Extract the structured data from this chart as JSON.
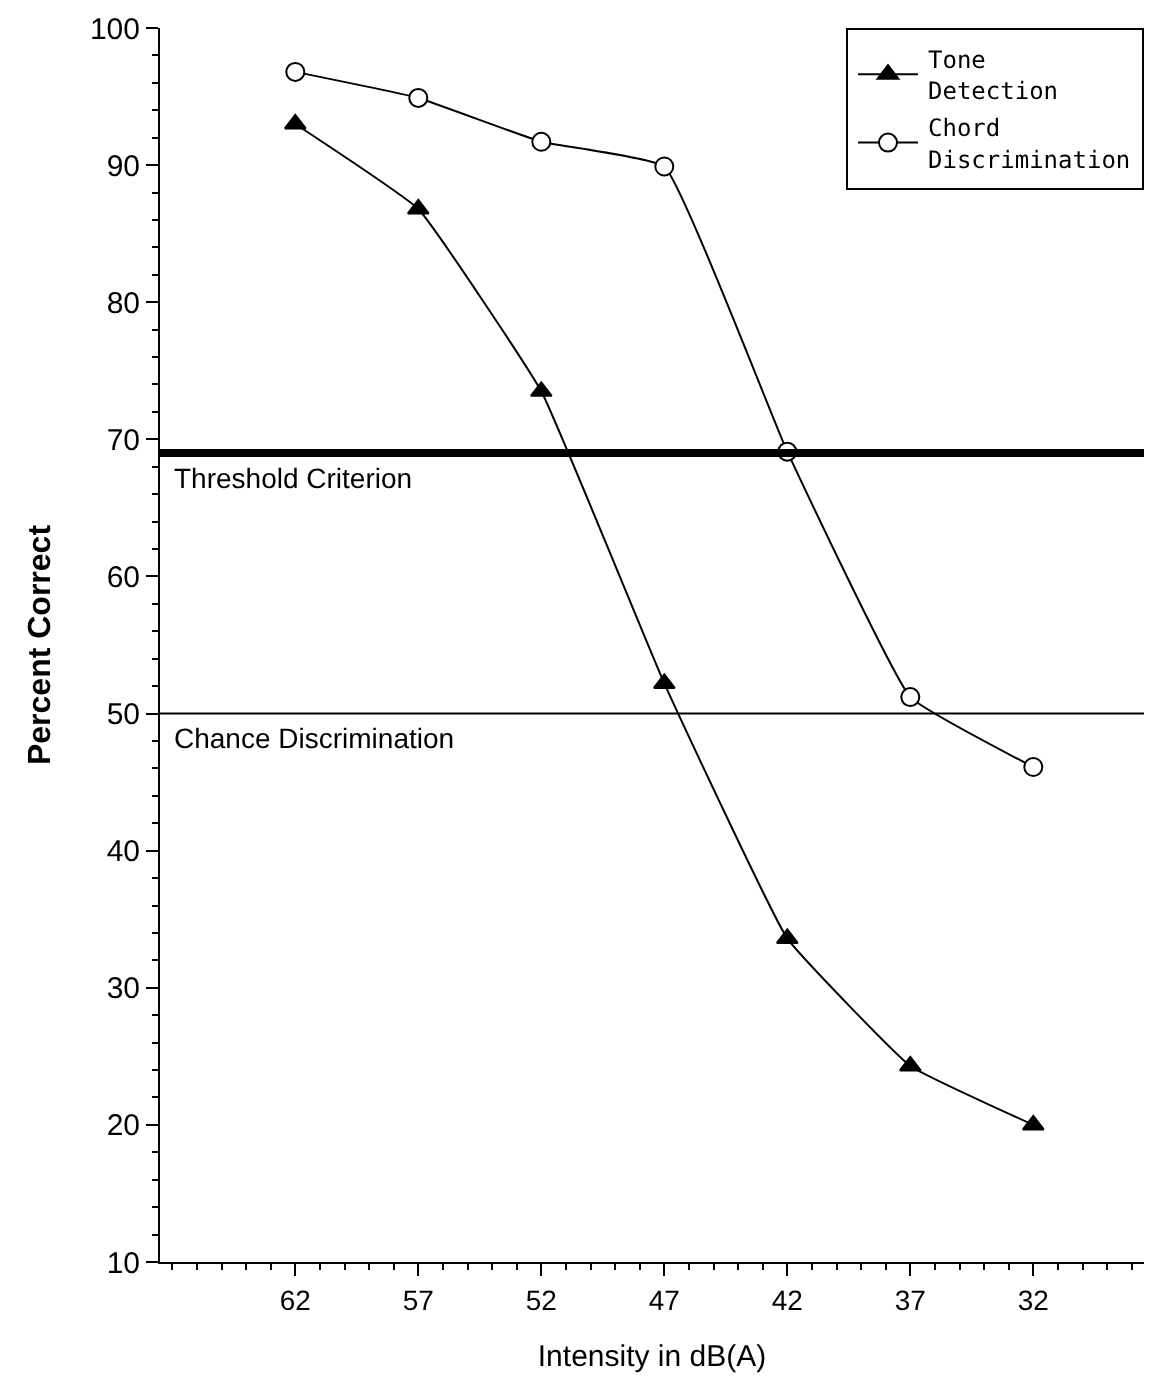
{
  "chart_data": {
    "type": "line",
    "xlabel": "Intensity in dB(A)",
    "ylabel": "Percent Correct",
    "x": [
      62,
      57,
      52,
      47,
      42,
      37,
      32
    ],
    "series": [
      {
        "name": "Tone\nDetection",
        "color": "#000000",
        "marker": "triangle",
        "values": [
          93.0,
          86.8,
          73.5,
          52.2,
          33.6,
          24.3,
          20.0
        ]
      },
      {
        "name": "Chord\nDiscrimination",
        "color": "#000000",
        "marker": "circle",
        "values": [
          96.8,
          94.9,
          91.7,
          89.9,
          69.1,
          51.2,
          46.1
        ]
      }
    ],
    "xlim": [
      67.5,
      27.5
    ],
    "xticks": [
      62,
      57,
      52,
      47,
      42,
      37,
      32
    ],
    "ylim": [
      10,
      100
    ],
    "yticks": [
      10,
      20,
      30,
      40,
      50,
      60,
      70,
      80,
      90,
      100
    ],
    "ref_lines": [
      {
        "axis": "y",
        "value": 69,
        "label": "Threshold Criterion",
        "color": "#000000"
      },
      {
        "axis": "y",
        "value": 50,
        "label": "Chance Discrimination",
        "color": "#000000"
      }
    ],
    "legend": "top right",
    "line_style": "solid"
  }
}
